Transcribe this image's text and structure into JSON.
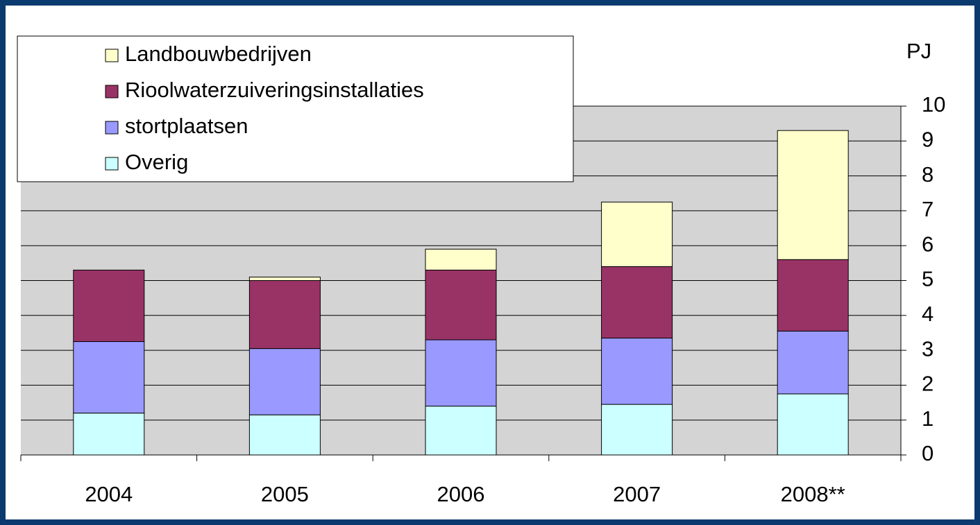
{
  "chart_data": {
    "type": "stacked_bar",
    "y_axis_label": "PJ",
    "categories": [
      "2004",
      "2005",
      "2006",
      "2007",
      "2008**"
    ],
    "series": [
      {
        "name": "Overig",
        "color": "#ccffff",
        "values": [
          1.2,
          1.15,
          1.4,
          1.45,
          1.75
        ]
      },
      {
        "name": "stortplaatsen",
        "color": "#9999ff",
        "values": [
          2.05,
          1.9,
          1.9,
          1.9,
          1.8
        ]
      },
      {
        "name": "Rioolwaterzuiveringsinstallaties",
        "color": "#993366",
        "values": [
          2.05,
          1.95,
          2.0,
          2.05,
          2.05
        ]
      },
      {
        "name": "Landbouwbedrijven",
        "color": "#ffffcc",
        "values": [
          0,
          0.1,
          0.6,
          1.85,
          3.7
        ]
      }
    ],
    "ylim": [
      0,
      10
    ],
    "yticks": [
      0,
      1,
      2,
      3,
      4,
      5,
      6,
      7,
      8,
      9,
      10
    ],
    "grid": true,
    "legend": "top-left"
  }
}
